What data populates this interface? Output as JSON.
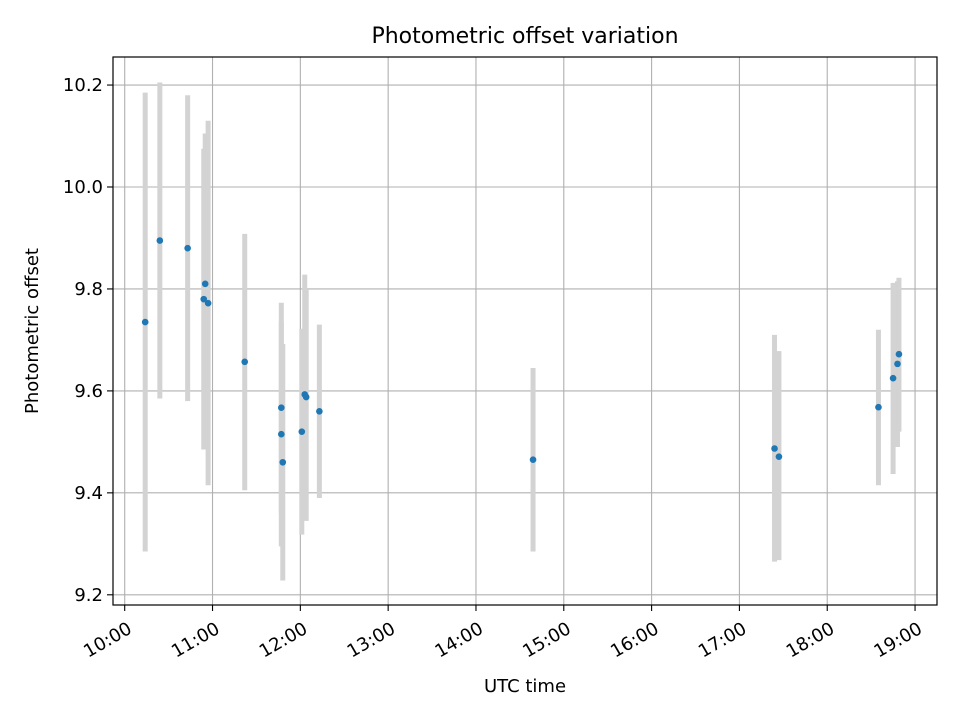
{
  "chart_data": {
    "type": "scatter",
    "title": "Photometric offset variation",
    "xlabel": "UTC time",
    "ylabel": "Photometric offset",
    "x_unit": "UTC time (HH:MM)",
    "xlim": [
      "09:52",
      "19:15"
    ],
    "ylim": [
      9.18,
      10.255
    ],
    "xticks": [
      "10:00",
      "11:00",
      "12:00",
      "13:00",
      "14:00",
      "15:00",
      "16:00",
      "17:00",
      "18:00",
      "19:00"
    ],
    "yticks": [
      "9.2",
      "9.4",
      "9.6",
      "9.8",
      "10.0",
      "10.2"
    ],
    "yticks_values": [
      9.2,
      9.4,
      9.6,
      9.8,
      10.0,
      10.2
    ],
    "grid": true,
    "marker_color": "#1f77b4",
    "errorbar_color": "#d3d3d3",
    "points": [
      {
        "x": "10:14",
        "y": 9.735,
        "err_low": 9.285,
        "err_high": 10.185
      },
      {
        "x": "10:24",
        "y": 9.895,
        "err_low": 9.585,
        "err_high": 10.205
      },
      {
        "x": "10:43",
        "y": 9.88,
        "err_low": 9.58,
        "err_high": 10.18
      },
      {
        "x": "10:54",
        "y": 9.78,
        "err_low": 9.485,
        "err_high": 10.075
      },
      {
        "x": "10:55",
        "y": 9.81,
        "err_low": 9.51,
        "err_high": 10.105
      },
      {
        "x": "10:57",
        "y": 9.772,
        "err_low": 9.415,
        "err_high": 10.13
      },
      {
        "x": "11:22",
        "y": 9.657,
        "err_low": 9.405,
        "err_high": 9.908
      },
      {
        "x": "11:47",
        "y": 9.567,
        "err_low": 9.36,
        "err_high": 9.773
      },
      {
        "x": "11:47",
        "y": 9.515,
        "err_low": 9.295,
        "err_high": 9.735
      },
      {
        "x": "11:48",
        "y": 9.46,
        "err_low": 9.228,
        "err_high": 9.692
      },
      {
        "x": "12:01",
        "y": 9.52,
        "err_low": 9.318,
        "err_high": 9.722
      },
      {
        "x": "12:03",
        "y": 9.593,
        "err_low": 9.36,
        "err_high": 9.828
      },
      {
        "x": "12:04",
        "y": 9.588,
        "err_low": 9.345,
        "err_high": 9.8
      },
      {
        "x": "12:13",
        "y": 9.56,
        "err_low": 9.39,
        "err_high": 9.73
      },
      {
        "x": "14:39",
        "y": 9.465,
        "err_low": 9.285,
        "err_high": 9.645
      },
      {
        "x": "17:24",
        "y": 9.487,
        "err_low": 9.265,
        "err_high": 9.71
      },
      {
        "x": "17:27",
        "y": 9.471,
        "err_low": 9.268,
        "err_high": 9.678
      },
      {
        "x": "18:35",
        "y": 9.568,
        "err_low": 9.415,
        "err_high": 9.72
      },
      {
        "x": "18:45",
        "y": 9.625,
        "err_low": 9.437,
        "err_high": 9.812
      },
      {
        "x": "18:48",
        "y": 9.653,
        "err_low": 9.49,
        "err_high": 9.815
      },
      {
        "x": "18:49",
        "y": 9.672,
        "err_low": 9.52,
        "err_high": 9.822
      }
    ]
  }
}
